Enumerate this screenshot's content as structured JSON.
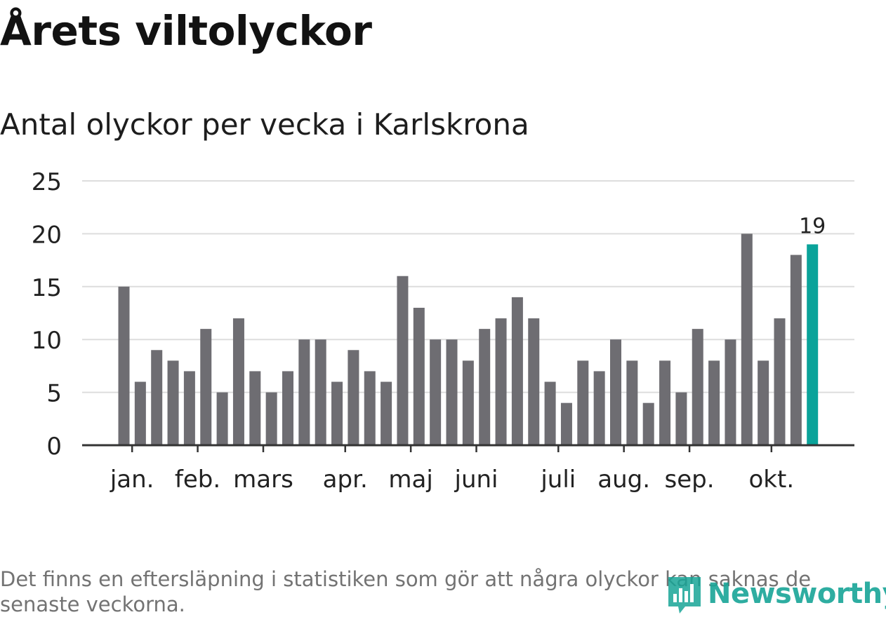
{
  "header": {
    "title": "Årets viltolyckor",
    "subtitle": "Antal olyckor per vecka i Karlskrona"
  },
  "footer": {
    "note": "Det finns en eftersläpning i statistiken som gör att några olyckor kan saknas de senaste veckorna.",
    "brand": "Newsworthy",
    "brand_icon": "bar-chart-logo-icon"
  },
  "colors": {
    "bar": "#6e6d72",
    "highlight": "#0aa39a",
    "grid": "#dddddd",
    "axis": "#333333",
    "text": "#222222",
    "brand": "#18a597"
  },
  "chart_data": {
    "type": "bar",
    "title": "Antal olyckor per vecka i Karlskrona",
    "ylim": [
      0,
      25
    ],
    "yticks": [
      0,
      5,
      10,
      15,
      20,
      25
    ],
    "grid": true,
    "values": [
      15,
      6,
      9,
      8,
      7,
      11,
      5,
      12,
      7,
      5,
      7,
      10,
      10,
      6,
      9,
      7,
      6,
      16,
      13,
      10,
      10,
      8,
      11,
      12,
      14,
      12,
      6,
      4,
      8,
      7,
      10,
      8,
      4,
      8,
      5,
      11,
      8,
      10,
      20,
      8,
      12,
      18,
      19
    ],
    "highlight_last": true,
    "highlight_label": "19",
    "month_labels": [
      {
        "label": "jan.",
        "week": 0.5
      },
      {
        "label": "feb.",
        "week": 4.5
      },
      {
        "label": "mars",
        "week": 8.5
      },
      {
        "label": "apr.",
        "week": 13.5
      },
      {
        "label": "maj",
        "week": 17.5
      },
      {
        "label": "juni",
        "week": 21.5
      },
      {
        "label": "juli",
        "week": 26.5
      },
      {
        "label": "aug.",
        "week": 30.5
      },
      {
        "label": "sep.",
        "week": 34.5
      },
      {
        "label": "okt.",
        "week": 39.5
      }
    ]
  }
}
